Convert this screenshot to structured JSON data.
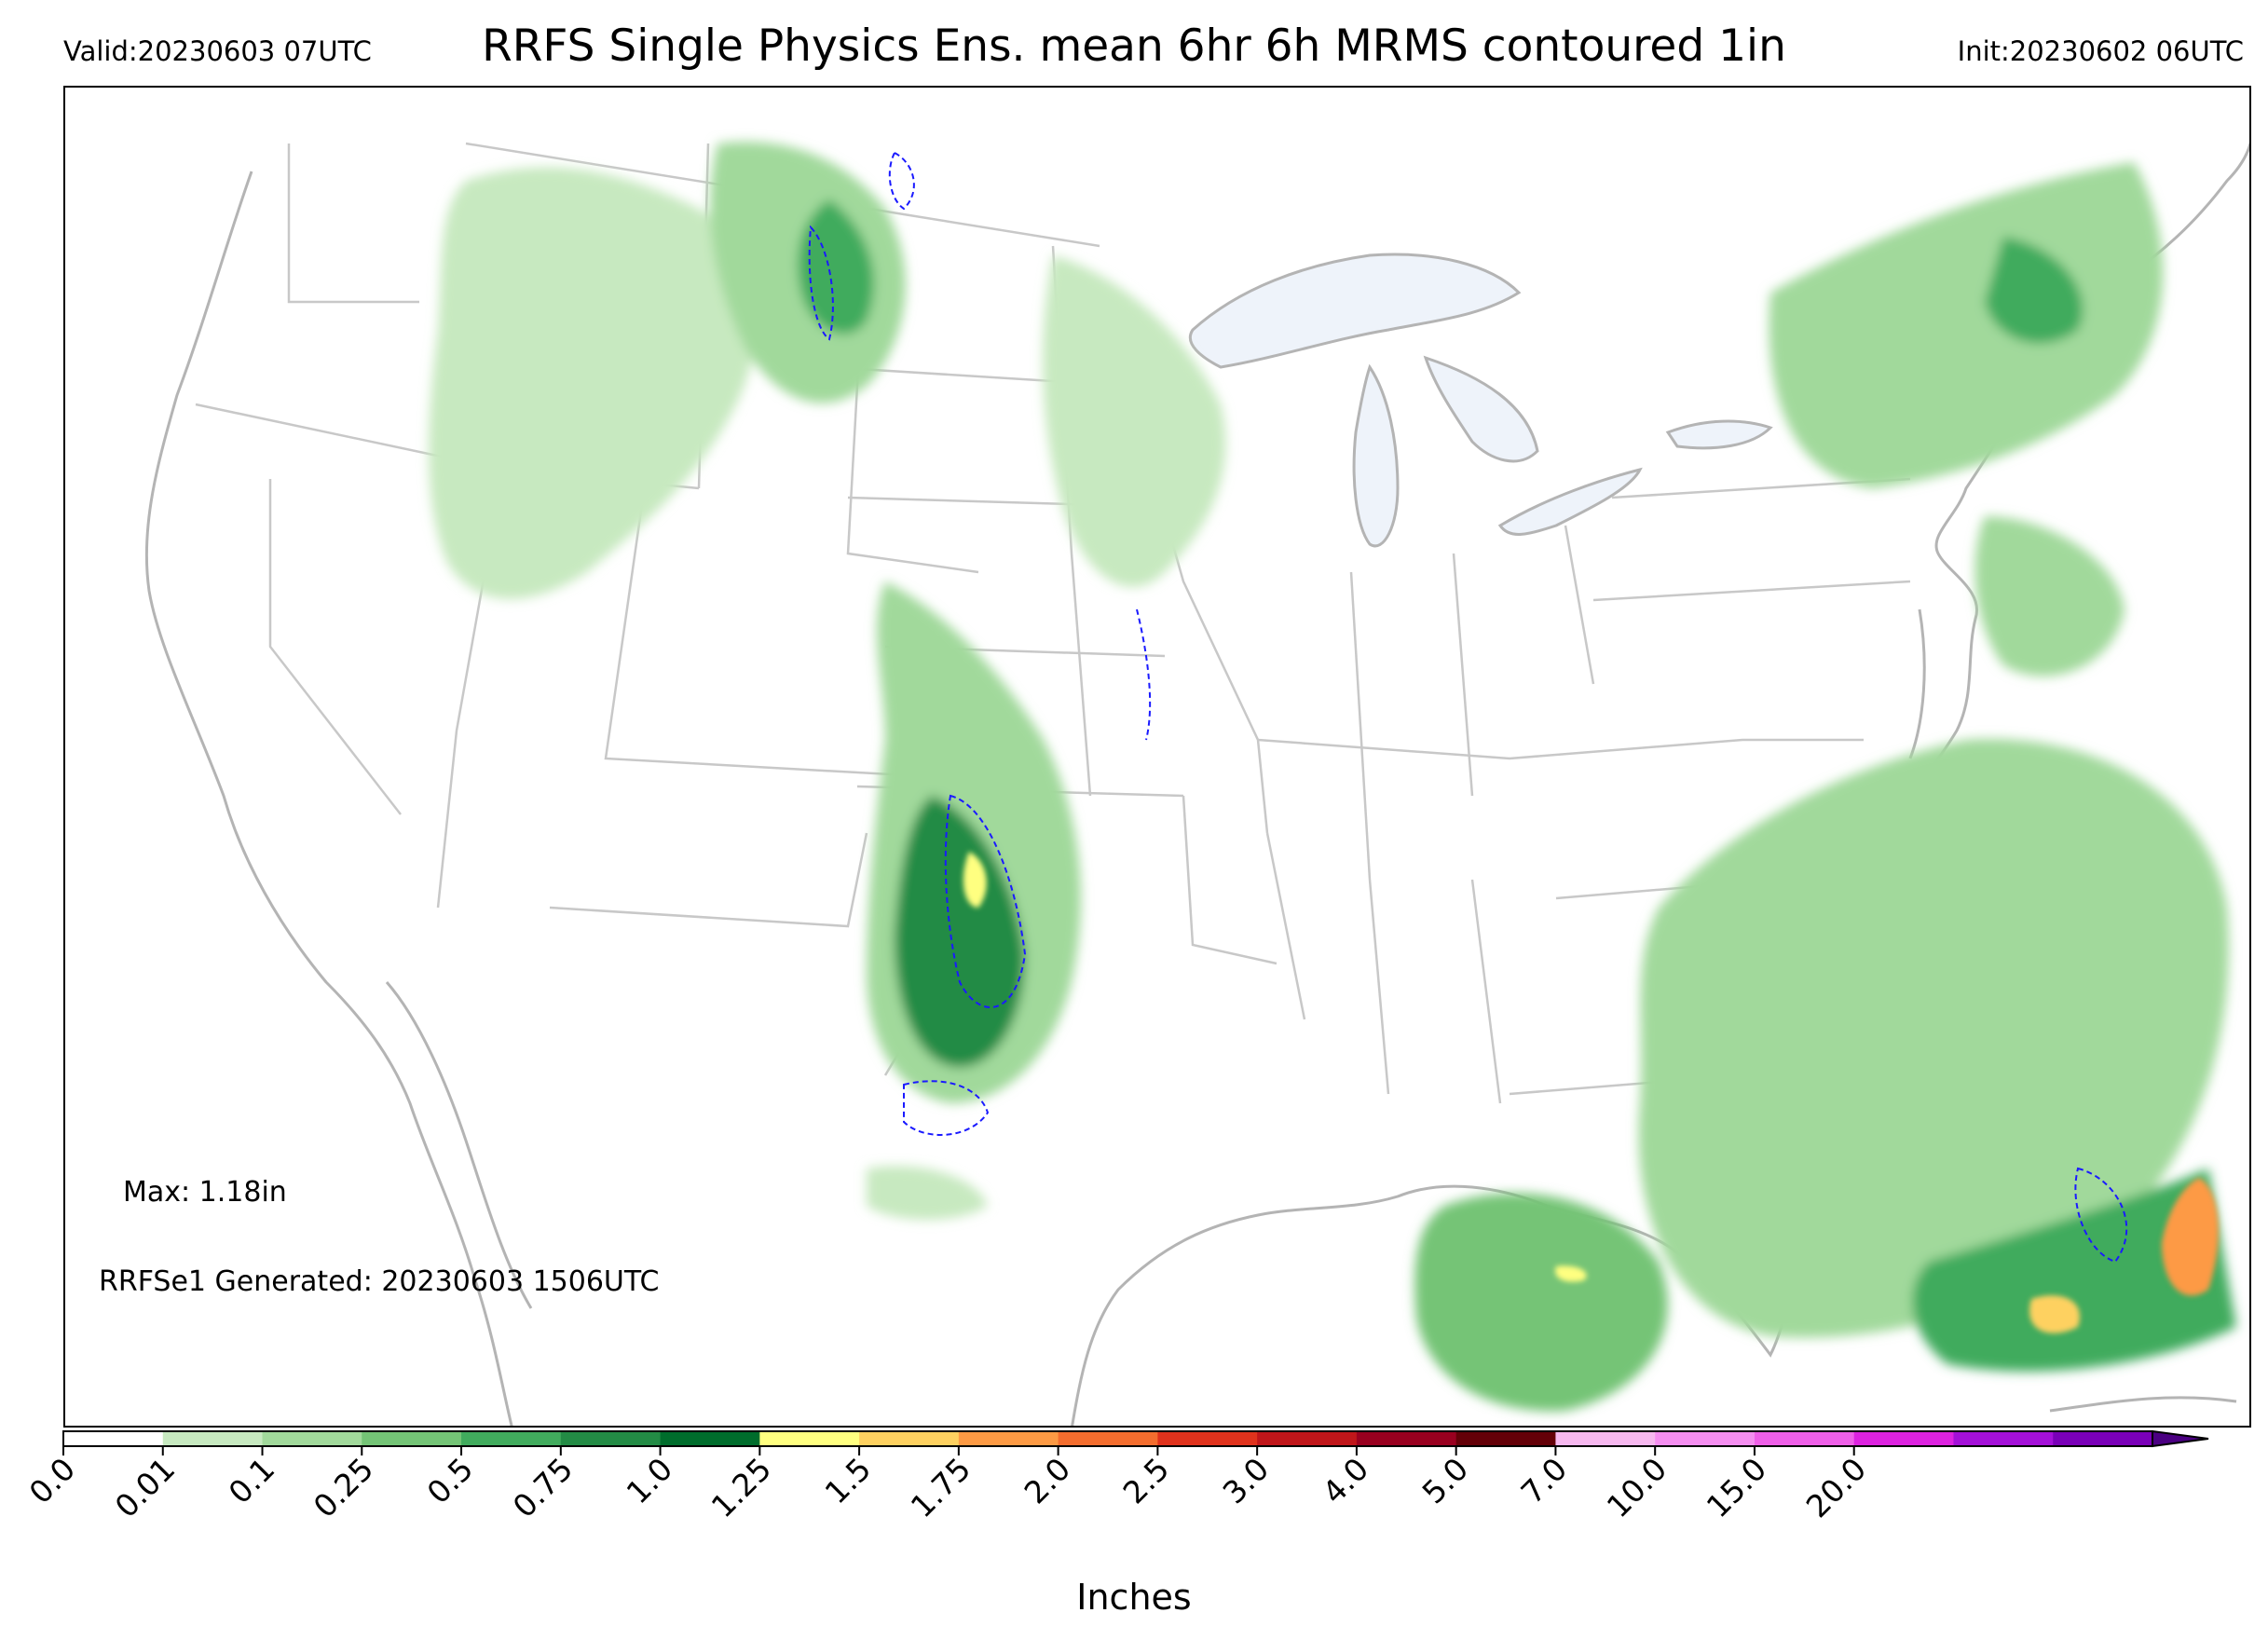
{
  "header": {
    "valid": "Valid:20230603 07UTC",
    "title": "RRFS Single Physics Ens. mean 6hr 6h MRMS contoured 1in",
    "init": "Init:20230602 06UTC"
  },
  "notes": {
    "max": "Max: 1.18in",
    "generated": "RRFSe1 Generated: 20230603 1506UTC"
  },
  "colorbar": {
    "label": "Inches",
    "ticks": [
      "0.0",
      "0.01",
      "0.1",
      "0.25",
      "0.5",
      "0.75",
      "1.0",
      "1.25",
      "1.5",
      "1.75",
      "2.0",
      "2.5",
      "3.0",
      "4.0",
      "5.0",
      "7.0",
      "10.0",
      "15.0",
      "20.0"
    ],
    "colors": [
      "#ffffff",
      "#c7e9c0",
      "#a1d99b",
      "#74c476",
      "#41ab5d",
      "#238b45",
      "#006d2c",
      "#ffff80",
      "#fed160",
      "#fd9a44",
      "#f46d2e",
      "#e0321c",
      "#c0161a",
      "#99001f",
      "#640008",
      "#f7b8ef",
      "#f58ef0",
      "#ef5fe8",
      "#dd22e0",
      "#a410d8",
      "#7a00b8"
    ],
    "extend_color": "#4b0082"
  },
  "map_colors": {
    "land_border": "#b4b4b4",
    "lake_fill": "#eef3fa",
    "mrms_contour": "#1a1aff"
  }
}
